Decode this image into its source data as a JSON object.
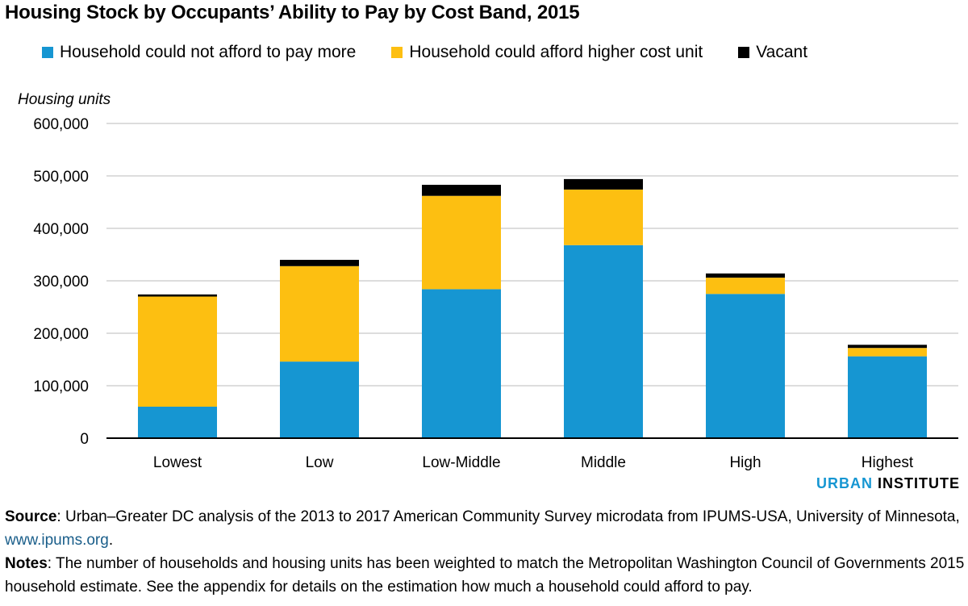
{
  "chart_data": {
    "type": "bar",
    "stacked": true,
    "title": "Housing Stock by Occupants’ Ability to Pay by Cost Band, 2015",
    "ylabel": "Housing units",
    "xlabel": "",
    "categories": [
      "Lowest",
      "Low",
      "Low-Middle",
      "Middle",
      "High",
      "Highest"
    ],
    "series": [
      {
        "name": "Household could not afford to pay more",
        "color": "#1696d2",
        "values": [
          60000,
          146000,
          284000,
          368000,
          275000,
          156000
        ]
      },
      {
        "name": "Household could afford higher cost unit",
        "color": "#fdbf11",
        "values": [
          210000,
          182000,
          178000,
          106000,
          31000,
          16000
        ]
      },
      {
        "name": "Vacant",
        "color": "#000000",
        "values": [
          4000,
          12000,
          21000,
          20000,
          8000,
          6000
        ]
      }
    ],
    "ylim": [
      0,
      600000
    ],
    "yticks": [
      0,
      100000,
      200000,
      300000,
      400000,
      500000,
      600000
    ],
    "ytick_labels": [
      "0",
      "100,000",
      "200,000",
      "300,000",
      "400,000",
      "500,000",
      "600,000"
    ],
    "grid": true,
    "legend_position": "top"
  },
  "brand": {
    "part1": "URBAN",
    "part2": "INSTITUTE"
  },
  "footer": {
    "source_label": "Source",
    "source_text": ": Urban–Greater DC analysis of the 2013 to 2017 American Community Survey microdata from IPUMS-USA, University of Minnesota, ",
    "source_link": "www.ipums.org",
    "source_end": ".",
    "notes_label": "Notes",
    "notes_text": ": The number of households and housing units has been weighted to match the Metropolitan Washington Council of Governments 2015 household estimate. See the appendix for details on the estimation how much a household could afford to pay."
  }
}
